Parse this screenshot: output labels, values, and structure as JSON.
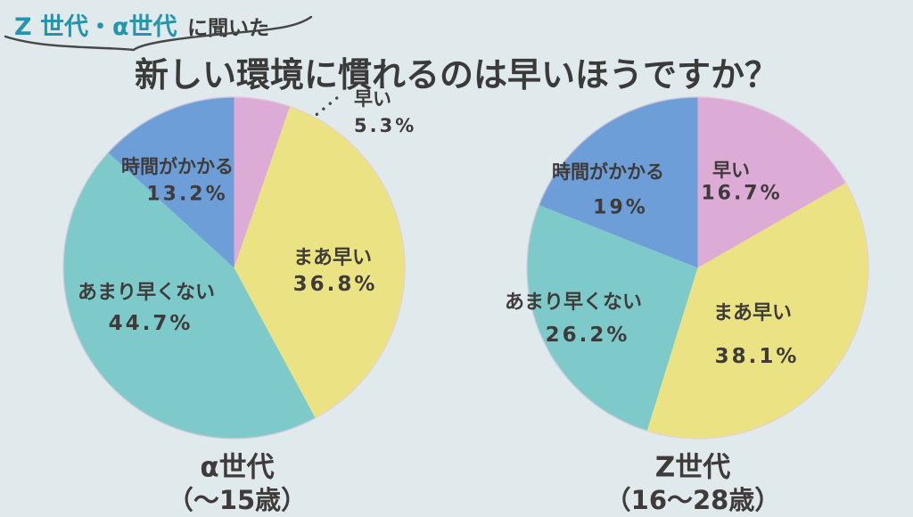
{
  "page": {
    "bg_color": "#e0e9ec",
    "text_color": "#3e3b3a",
    "accent_color": "#2395ac"
  },
  "header": {
    "tagline_highlight": "Z 世代・α世代",
    "tagline_rest": "に聞いた",
    "title": "新しい環境に慣れるのは早いほうですか？"
  },
  "chart_data": [
    {
      "type": "pie",
      "title": "α世代",
      "subtitle": "（～15歳）",
      "labels": [
        "早い",
        "まあ早い",
        "あまり早くない",
        "時間がかかる"
      ],
      "values": [
        5.3,
        36.8,
        44.7,
        13.2
      ],
      "value_labels": [
        "5.3%",
        "36.8%",
        "44.7%",
        "13.2%"
      ],
      "colors": [
        "#dcabd6",
        "#ebe383",
        "#7ecaca",
        "#6d9ed8"
      ],
      "start_angle_deg": 0,
      "direction": "clockwise",
      "callout": {
        "slice": "早い",
        "style": "dotted-leader-line"
      }
    },
    {
      "type": "pie",
      "title": "Z世代",
      "subtitle": "（16～28歳）",
      "labels": [
        "早い",
        "まあ早い",
        "あまり早くない",
        "時間がかかる"
      ],
      "values": [
        16.7,
        38.1,
        26.2,
        19
      ],
      "value_labels": [
        "16.7%",
        "38.1%",
        "26.2%",
        "19%"
      ],
      "colors": [
        "#dcabd6",
        "#ebe383",
        "#7ecaca",
        "#6d9ed8"
      ],
      "start_angle_deg": 0,
      "direction": "clockwise"
    }
  ]
}
